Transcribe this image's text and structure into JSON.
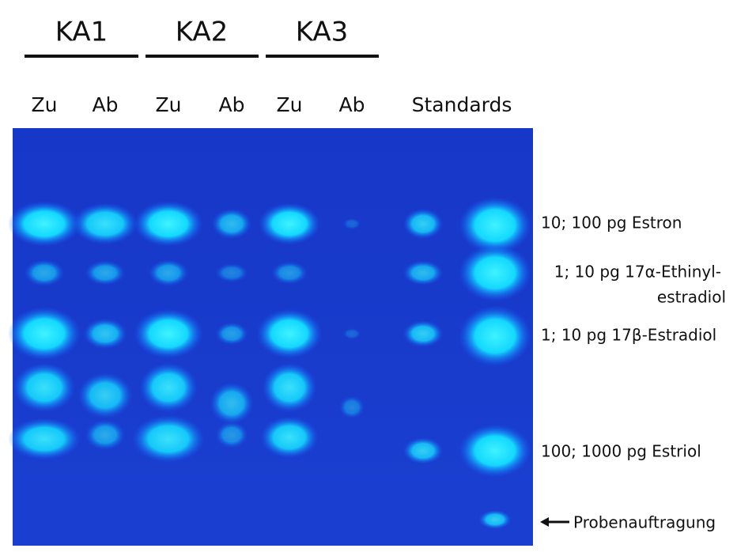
{
  "groups": [
    "KA1",
    "KA2",
    "KA3"
  ],
  "lanes": [
    "Zu",
    "Ab",
    "Zu",
    "Ab",
    "Zu",
    "Ab",
    "Standards"
  ],
  "annotations": [
    "10; 100 pg Estron",
    "1; 10 pg 17α-Ethinyl-",
    "estradiol",
    "1; 10 pg 17β-Estradiol",
    "100; 1000 pg Estriol",
    "Probenauftragung"
  ]
}
